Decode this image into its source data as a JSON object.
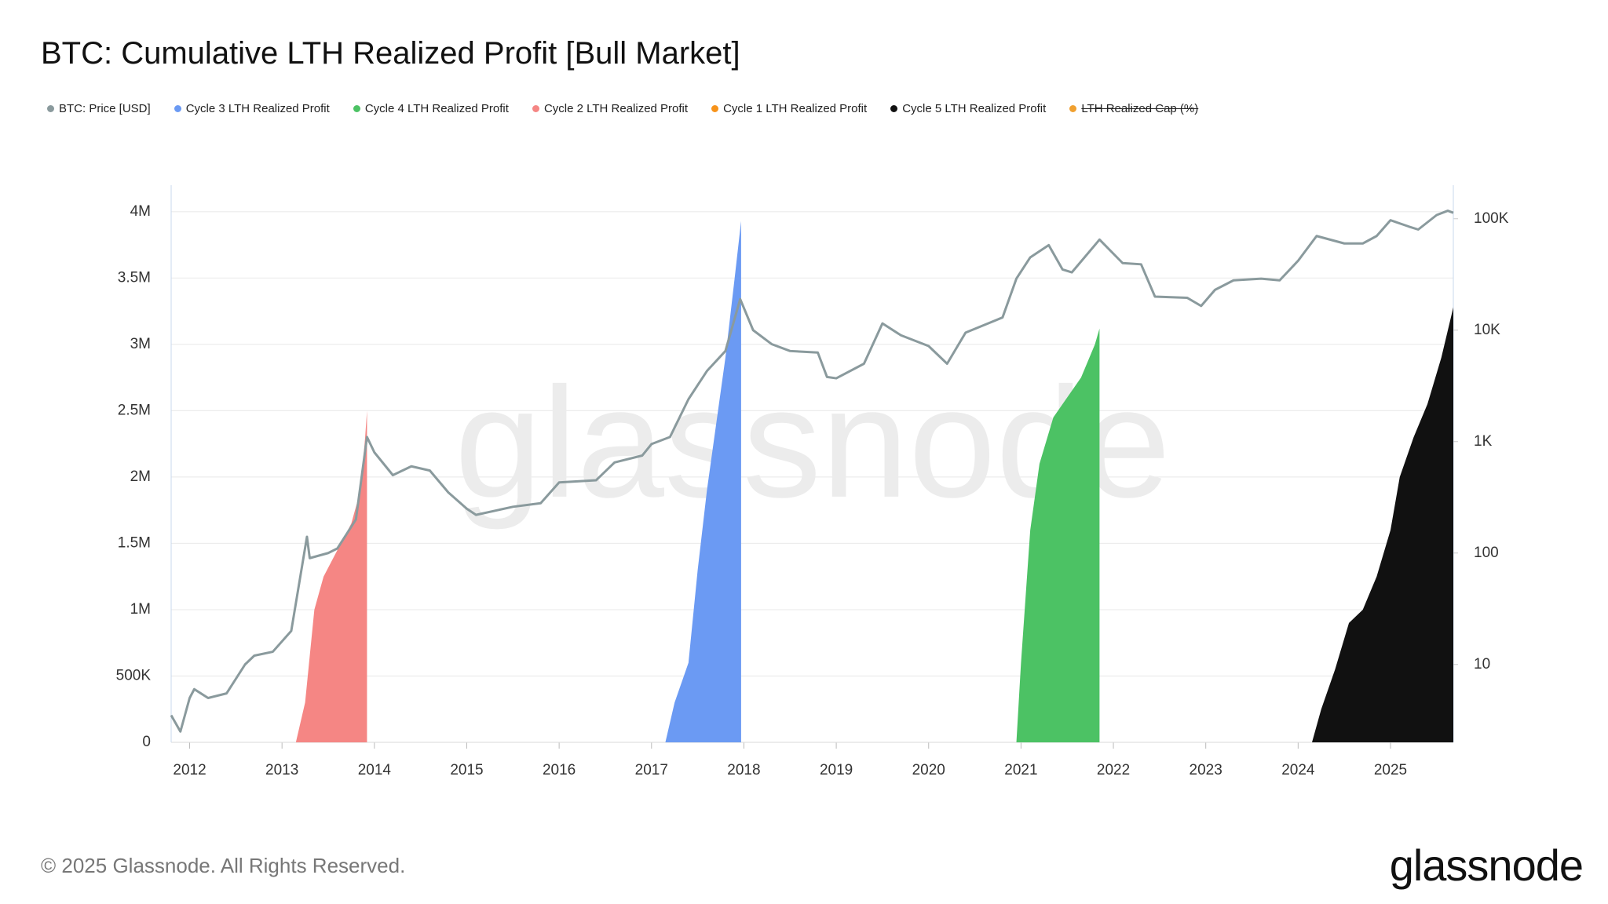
{
  "chart_data": {
    "type": "area",
    "title": "BTC: Cumulative LTH Realized Profit [Bull Market]",
    "watermark": "glassnode",
    "footer": "© 2025 Glassnode. All Rights Reserved.",
    "logo": "glassnode",
    "xlim": [
      2011.8,
      2025.68
    ],
    "xticks": [
      2012,
      2013,
      2014,
      2015,
      2016,
      2017,
      2018,
      2019,
      2020,
      2021,
      2022,
      2023,
      2024,
      2025
    ],
    "ylim": [
      0,
      4200000
    ],
    "yticks": [
      0,
      {
        "value": 500000,
        "label": "500K"
      },
      {
        "value": 1000000,
        "label": "1M"
      },
      {
        "value": 1500000,
        "label": "1.5M"
      },
      {
        "value": 2000000,
        "label": "2M"
      },
      {
        "value": 2500000,
        "label": "2.5M"
      },
      {
        "value": 3000000,
        "label": "3M"
      },
      {
        "value": 3500000,
        "label": "3.5M"
      },
      {
        "value": 4000000,
        "label": "4M"
      }
    ],
    "y2lim": [
      2,
      200000
    ],
    "y2scale": "log",
    "y2ticks": [
      10,
      100,
      {
        "value": 1000,
        "label": "1K"
      },
      {
        "value": 10000,
        "label": "10K"
      },
      {
        "value": 100000,
        "label": "100K"
      }
    ],
    "grid": true,
    "legend": "top",
    "series": [
      {
        "name": "BTC: Price [USD]",
        "type": "line",
        "axis": "y2",
        "color": "#8a9a9d",
        "x": [
          2011.8,
          2011.9,
          2012.0,
          2012.05,
          2012.2,
          2012.4,
          2012.6,
          2012.7,
          2012.9,
          2013.1,
          2013.27,
          2013.3,
          2013.5,
          2013.6,
          2013.8,
          2013.92,
          2014.0,
          2014.2,
          2014.4,
          2014.6,
          2014.8,
          2015.0,
          2015.1,
          2015.5,
          2015.8,
          2016.0,
          2016.4,
          2016.6,
          2016.9,
          2017.0,
          2017.2,
          2017.4,
          2017.6,
          2017.8,
          2017.96,
          2018.1,
          2018.3,
          2018.5,
          2018.8,
          2018.9,
          2019.0,
          2019.3,
          2019.5,
          2019.7,
          2020.0,
          2020.2,
          2020.4,
          2020.8,
          2020.95,
          2021.1,
          2021.3,
          2021.45,
          2021.55,
          2021.85,
          2022.1,
          2022.3,
          2022.45,
          2022.8,
          2022.95,
          2023.1,
          2023.3,
          2023.6,
          2023.8,
          2024.0,
          2024.2,
          2024.5,
          2024.7,
          2024.85,
          2025.0,
          2025.2,
          2025.3,
          2025.5,
          2025.62,
          2025.68
        ],
        "values": [
          3.5,
          2.5,
          5,
          6,
          5,
          5.5,
          10,
          12,
          13,
          20,
          140,
          90,
          100,
          110,
          200,
          1100,
          800,
          500,
          600,
          550,
          350,
          250,
          220,
          260,
          280,
          430,
          450,
          650,
          750,
          950,
          1100,
          2400,
          4300,
          6500,
          19000,
          10000,
          7500,
          6500,
          6300,
          3800,
          3700,
          5000,
          11500,
          9000,
          7200,
          5000,
          9500,
          13000,
          29000,
          45000,
          58000,
          35000,
          33000,
          65000,
          40000,
          39000,
          20000,
          19500,
          16500,
          23000,
          28000,
          29000,
          28000,
          42000,
          70000,
          60000,
          60000,
          70000,
          97000,
          85000,
          80000,
          108000,
          118000,
          113000
        ]
      },
      {
        "name": "Cycle 3 LTH Realized Profit",
        "type": "area",
        "color": "#6b9af3",
        "x": [
          2017.15,
          2017.25,
          2017.4,
          2017.5,
          2017.6,
          2017.7,
          2017.8,
          2017.9,
          2017.97
        ],
        "values": [
          0,
          300000,
          600000,
          1300000,
          1900000,
          2400000,
          2900000,
          3500000,
          3930000
        ]
      },
      {
        "name": "Cycle 4 LTH Realized Profit",
        "type": "area",
        "color": "#4cc264",
        "x": [
          2020.95,
          2021.0,
          2021.1,
          2021.2,
          2021.35,
          2021.5,
          2021.65,
          2021.8,
          2021.85
        ],
        "values": [
          0,
          600000,
          1600000,
          2100000,
          2450000,
          2600000,
          2750000,
          3000000,
          3120000
        ]
      },
      {
        "name": "Cycle 2 LTH Realized Profit",
        "type": "area",
        "color": "#f58684",
        "x": [
          2013.15,
          2013.25,
          2013.35,
          2013.45,
          2013.6,
          2013.75,
          2013.85,
          2013.9,
          2013.92
        ],
        "values": [
          0,
          300000,
          1000000,
          1250000,
          1450000,
          1650000,
          1900000,
          2300000,
          2500000
        ]
      },
      {
        "name": "Cycle 1 LTH Realized Profit",
        "type": "area",
        "color": "#f7931a",
        "x": [],
        "values": []
      },
      {
        "name": "Cycle 5 LTH Realized Profit",
        "type": "area",
        "color": "#111111",
        "x": [
          2024.15,
          2024.25,
          2024.4,
          2024.55,
          2024.7,
          2024.85,
          2025.0,
          2025.1,
          2025.25,
          2025.4,
          2025.55,
          2025.68
        ],
        "values": [
          0,
          250000,
          550000,
          900000,
          1000000,
          1250000,
          1600000,
          2000000,
          2300000,
          2550000,
          2900000,
          3280000
        ]
      },
      {
        "name": "LTH Realized Cap (%)",
        "type": "line",
        "axis": "y2",
        "color": "#f0a030",
        "visible": false,
        "x": [],
        "values": []
      }
    ]
  }
}
